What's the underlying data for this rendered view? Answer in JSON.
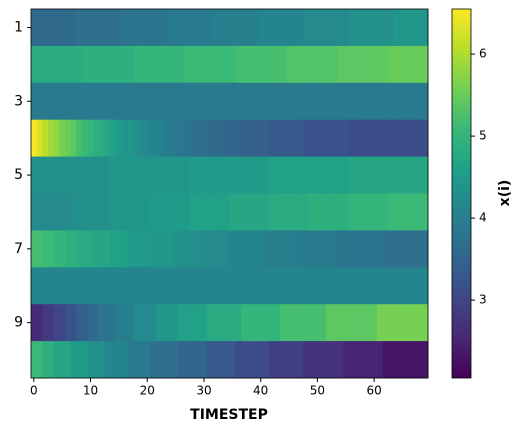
{
  "chart_data": {
    "type": "heatmap",
    "x_label": "TIMESTEP",
    "colorbar_label": "x(i)",
    "colormap": "viridis",
    "rows": [
      1,
      null,
      3,
      null,
      5,
      null,
      7,
      null,
      9,
      null
    ],
    "xlim": [
      -0.5,
      69.5
    ],
    "xticks": [
      0,
      10,
      20,
      30,
      40,
      50,
      60
    ],
    "clim": [
      2.05,
      6.55
    ],
    "cticks": [
      3,
      4,
      5,
      6
    ],
    "z": [
      [
        3.6,
        3.6,
        3.6,
        3.6,
        3.6,
        3.6,
        3.6,
        3.6,
        3.7,
        3.7,
        3.7,
        3.7,
        3.7,
        3.7,
        3.7,
        3.7,
        3.8,
        3.8,
        3.8,
        3.8,
        3.8,
        3.8,
        3.8,
        3.8,
        3.9,
        3.9,
        3.9,
        3.9,
        3.9,
        3.9,
        3.9,
        3.9,
        4.0,
        4.0,
        4.0,
        4.0,
        4.0,
        4.0,
        4.0,
        4.0,
        4.1,
        4.1,
        4.1,
        4.1,
        4.1,
        4.1,
        4.1,
        4.1,
        4.2,
        4.2,
        4.2,
        4.2,
        4.2,
        4.2,
        4.2,
        4.2,
        4.3,
        4.3,
        4.3,
        4.3,
        4.3,
        4.3,
        4.3,
        4.3,
        4.4,
        4.4,
        4.4,
        4.4,
        4.4,
        4.4
      ],
      [
        4.8,
        4.8,
        4.8,
        4.8,
        4.8,
        4.8,
        4.8,
        4.8,
        4.8,
        4.9,
        4.9,
        4.9,
        4.9,
        4.9,
        4.9,
        4.9,
        4.9,
        4.9,
        5.0,
        5.0,
        5.0,
        5.0,
        5.0,
        5.0,
        5.0,
        5.0,
        5.0,
        5.1,
        5.1,
        5.1,
        5.1,
        5.1,
        5.1,
        5.1,
        5.1,
        5.1,
        5.2,
        5.2,
        5.2,
        5.2,
        5.2,
        5.2,
        5.2,
        5.2,
        5.2,
        5.3,
        5.3,
        5.3,
        5.3,
        5.3,
        5.3,
        5.3,
        5.3,
        5.3,
        5.4,
        5.4,
        5.4,
        5.4,
        5.4,
        5.4,
        5.4,
        5.4,
        5.4,
        5.5,
        5.5,
        5.5,
        5.5,
        5.5,
        5.5,
        5.5
      ],
      [
        3.9,
        3.9,
        3.9,
        3.9,
        3.9,
        3.9,
        3.9,
        3.9,
        3.9,
        3.9,
        3.9,
        3.9,
        3.9,
        3.9,
        3.9,
        3.9,
        3.9,
        3.9,
        3.9,
        3.9,
        3.9,
        3.9,
        3.9,
        3.9,
        3.9,
        3.9,
        3.9,
        3.9,
        3.9,
        3.9,
        3.9,
        3.9,
        3.9,
        3.9,
        3.9,
        3.9,
        3.9,
        3.9,
        3.9,
        3.9,
        3.9,
        3.9,
        3.9,
        3.9,
        3.9,
        3.9,
        3.9,
        3.9,
        3.9,
        3.9,
        3.9,
        3.9,
        3.9,
        3.9,
        3.9,
        3.9,
        3.9,
        3.9,
        3.9,
        3.9,
        3.9,
        3.9,
        3.9,
        3.9,
        3.9,
        3.9,
        3.9,
        3.9,
        3.9,
        3.9
      ],
      [
        6.5,
        6.3,
        6.1,
        5.9,
        5.8,
        5.6,
        5.5,
        5.4,
        5.2,
        5.1,
        5.0,
        4.9,
        4.8,
        4.7,
        4.6,
        4.5,
        4.4,
        4.4,
        4.3,
        4.2,
        4.2,
        4.1,
        4.1,
        4.0,
        3.9,
        3.9,
        3.8,
        3.8,
        3.7,
        3.7,
        3.7,
        3.6,
        3.6,
        3.6,
        3.5,
        3.5,
        3.5,
        3.4,
        3.4,
        3.4,
        3.4,
        3.4,
        3.3,
        3.3,
        3.3,
        3.3,
        3.3,
        3.3,
        3.2,
        3.2,
        3.2,
        3.2,
        3.2,
        3.2,
        3.2,
        3.2,
        3.1,
        3.1,
        3.1,
        3.1,
        3.1,
        3.1,
        3.1,
        3.1,
        3.1,
        3.1,
        3.1,
        3.1,
        3.1,
        3.1
      ],
      [
        4.3,
        4.3,
        4.3,
        4.3,
        4.3,
        4.3,
        4.3,
        4.3,
        4.3,
        4.3,
        4.3,
        4.3,
        4.3,
        4.3,
        4.4,
        4.4,
        4.4,
        4.4,
        4.4,
        4.4,
        4.4,
        4.4,
        4.4,
        4.4,
        4.4,
        4.4,
        4.4,
        4.4,
        4.5,
        4.5,
        4.5,
        4.5,
        4.5,
        4.5,
        4.5,
        4.5,
        4.5,
        4.5,
        4.5,
        4.5,
        4.5,
        4.5,
        4.6,
        4.6,
        4.6,
        4.6,
        4.6,
        4.6,
        4.6,
        4.6,
        4.6,
        4.6,
        4.6,
        4.6,
        4.6,
        4.6,
        4.7,
        4.7,
        4.7,
        4.7,
        4.7,
        4.7,
        4.7,
        4.7,
        4.7,
        4.7,
        4.7,
        4.7,
        4.7,
        4.7
      ],
      [
        4.2,
        4.2,
        4.2,
        4.2,
        4.2,
        4.2,
        4.2,
        4.3,
        4.3,
        4.3,
        4.3,
        4.3,
        4.3,
        4.3,
        4.4,
        4.4,
        4.4,
        4.4,
        4.4,
        4.4,
        4.4,
        4.5,
        4.5,
        4.5,
        4.5,
        4.5,
        4.5,
        4.5,
        4.6,
        4.6,
        4.6,
        4.6,
        4.6,
        4.6,
        4.6,
        4.7,
        4.7,
        4.7,
        4.7,
        4.7,
        4.7,
        4.7,
        4.8,
        4.8,
        4.8,
        4.8,
        4.8,
        4.8,
        4.8,
        4.9,
        4.9,
        4.9,
        4.9,
        4.9,
        4.9,
        4.9,
        5.0,
        5.0,
        5.0,
        5.0,
        5.0,
        5.0,
        5.0,
        5.1,
        5.1,
        5.1,
        5.1,
        5.1,
        5.1,
        5.1
      ],
      [
        5.2,
        5.2,
        5.1,
        5.1,
        5.0,
        5.0,
        4.9,
        4.9,
        4.8,
        4.8,
        4.8,
        4.7,
        4.7,
        4.7,
        4.6,
        4.6,
        4.6,
        4.5,
        4.5,
        4.5,
        4.5,
        4.4,
        4.4,
        4.4,
        4.4,
        4.3,
        4.3,
        4.3,
        4.3,
        4.3,
        4.2,
        4.2,
        4.2,
        4.2,
        4.2,
        4.1,
        4.1,
        4.1,
        4.1,
        4.1,
        4.1,
        4.0,
        4.0,
        4.0,
        4.0,
        4.0,
        4.0,
        3.9,
        3.9,
        3.9,
        3.9,
        3.9,
        3.9,
        3.9,
        3.8,
        3.8,
        3.8,
        3.8,
        3.8,
        3.8,
        3.8,
        3.8,
        3.7,
        3.7,
        3.7,
        3.7,
        3.7,
        3.7,
        3.7,
        3.7
      ],
      [
        4.1,
        4.1,
        4.1,
        4.1,
        4.1,
        4.1,
        4.1,
        4.1,
        4.1,
        4.1,
        4.1,
        4.1,
        4.1,
        4.1,
        4.1,
        4.1,
        4.1,
        4.1,
        4.1,
        4.1,
        4.1,
        4.1,
        4.1,
        4.1,
        4.1,
        4.1,
        4.1,
        4.1,
        4.1,
        4.1,
        4.1,
        4.1,
        4.1,
        4.1,
        4.1,
        4.1,
        4.1,
        4.1,
        4.1,
        4.1,
        4.1,
        4.1,
        4.1,
        4.1,
        4.1,
        4.1,
        4.1,
        4.1,
        4.1,
        4.1,
        4.1,
        4.1,
        4.1,
        4.1,
        4.1,
        4.1,
        4.1,
        4.1,
        4.1,
        4.1,
        4.1,
        4.1,
        4.1,
        4.1,
        4.1,
        4.1,
        4.1,
        4.1,
        4.1,
        4.1
      ],
      [
        2.6,
        2.6,
        2.8,
        2.8,
        3.0,
        3.0,
        3.2,
        3.2,
        3.4,
        3.4,
        3.6,
        3.6,
        3.8,
        3.8,
        3.8,
        4.0,
        4.0,
        4.0,
        4.2,
        4.2,
        4.2,
        4.2,
        4.4,
        4.4,
        4.4,
        4.4,
        4.6,
        4.6,
        4.6,
        4.6,
        4.6,
        4.8,
        4.8,
        4.8,
        4.8,
        4.8,
        4.8,
        5.0,
        5.0,
        5.0,
        5.0,
        5.0,
        5.0,
        5.0,
        5.2,
        5.2,
        5.2,
        5.2,
        5.2,
        5.2,
        5.2,
        5.2,
        5.4,
        5.4,
        5.4,
        5.4,
        5.4,
        5.4,
        5.4,
        5.4,
        5.4,
        5.6,
        5.6,
        5.6,
        5.6,
        5.6,
        5.6,
        5.6,
        5.6,
        5.6
      ],
      [
        5.1,
        5.1,
        4.9,
        4.9,
        4.7,
        4.7,
        4.7,
        4.5,
        4.5,
        4.5,
        4.3,
        4.3,
        4.3,
        4.1,
        4.1,
        4.1,
        4.1,
        3.9,
        3.9,
        3.9,
        3.9,
        3.7,
        3.7,
        3.7,
        3.7,
        3.7,
        3.5,
        3.5,
        3.5,
        3.5,
        3.5,
        3.3,
        3.3,
        3.3,
        3.3,
        3.3,
        3.1,
        3.1,
        3.1,
        3.1,
        3.1,
        3.1,
        2.9,
        2.9,
        2.9,
        2.9,
        2.9,
        2.9,
        2.7,
        2.7,
        2.7,
        2.7,
        2.7,
        2.7,
        2.7,
        2.5,
        2.5,
        2.5,
        2.5,
        2.5,
        2.5,
        2.5,
        2.3,
        2.3,
        2.3,
        2.3,
        2.3,
        2.3,
        2.3,
        2.3
      ]
    ]
  }
}
